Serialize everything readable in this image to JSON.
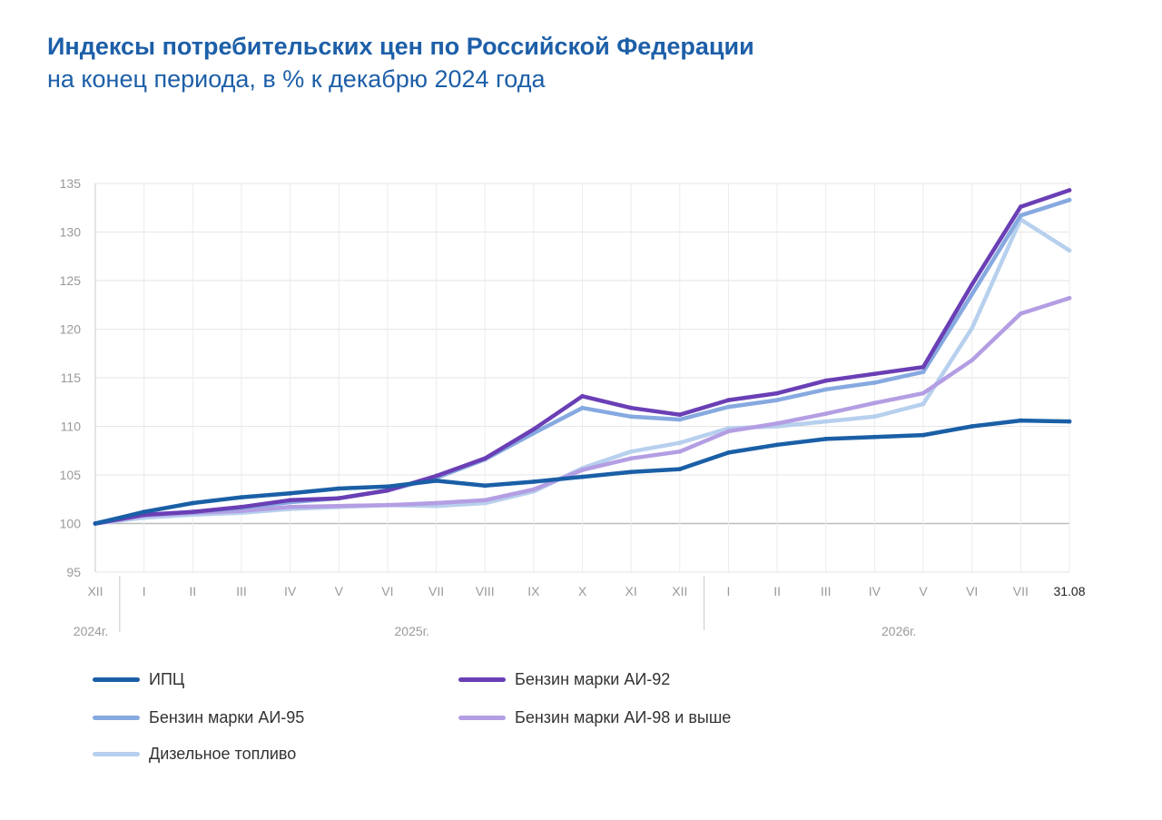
{
  "title": "Индексы потребительских цен по Российской Федерации",
  "subtitle": "на конец периода, в % к декабрю 2024 года",
  "chart_data": {
    "type": "line",
    "x": [
      "XII",
      "I",
      "II",
      "III",
      "IV",
      "V",
      "VI",
      "VII",
      "VIII",
      "IX",
      "X",
      "XI",
      "XII",
      "I",
      "II",
      "III",
      "IV",
      "V",
      "VI",
      "VII",
      "31.08"
    ],
    "year_labels": [
      "2024г.",
      "2025г.",
      "2026г."
    ],
    "ylim": [
      95,
      135
    ],
    "yticks": [
      95,
      100,
      105,
      110,
      115,
      120,
      125,
      130,
      135
    ],
    "grid": true,
    "legend_position": "bottom",
    "series": [
      {
        "name": "ИПЦ",
        "color": "#1a5fa6",
        "values": [
          100,
          101.2,
          102.1,
          102.7,
          103.1,
          103.6,
          103.8,
          104.4,
          103.9,
          104.3,
          104.8,
          105.3,
          105.6,
          107.3,
          108.1,
          108.7,
          108.9,
          109.1,
          110.0,
          110.6,
          110.5
        ]
      },
      {
        "name": "Бензин марки АИ-92",
        "color": "#6a3fb5",
        "values": [
          100,
          100.9,
          101.2,
          101.7,
          102.4,
          102.6,
          103.4,
          104.9,
          106.7,
          109.7,
          113.1,
          111.9,
          111.2,
          112.7,
          113.4,
          114.7,
          115.4,
          116.1,
          124.6,
          132.6,
          134.3
        ]
      },
      {
        "name": "Бензин марки АИ-95",
        "color": "#86a9e0",
        "values": [
          100,
          100.9,
          101.2,
          101.6,
          102.2,
          102.6,
          103.4,
          104.7,
          106.6,
          109.3,
          111.9,
          111.0,
          110.7,
          112.0,
          112.7,
          113.8,
          114.5,
          115.6,
          123.6,
          131.7,
          133.3
        ]
      },
      {
        "name": "Бензин марки АИ-98 и выше",
        "color": "#b49ee3",
        "values": [
          100,
          100.8,
          101.1,
          101.3,
          101.7,
          101.8,
          101.9,
          102.1,
          102.4,
          103.5,
          105.5,
          106.7,
          107.4,
          109.5,
          110.3,
          111.3,
          112.4,
          113.4,
          116.8,
          121.6,
          123.2
        ]
      },
      {
        "name": "Дизельное топливо",
        "color": "#b7d0ee",
        "values": [
          100,
          100.6,
          100.9,
          101.1,
          101.5,
          101.7,
          101.9,
          101.8,
          102.1,
          103.3,
          105.7,
          107.4,
          108.3,
          109.8,
          110.0,
          110.5,
          111.0,
          112.3,
          120.1,
          131.3,
          128.1
        ]
      }
    ]
  },
  "legend": {
    "cpi": "ИПЦ",
    "ai92": "Бензин марки АИ-92",
    "ai95": "Бензин марки АИ-95",
    "ai98": "Бензин марки АИ-98 и выше",
    "diesel": "Дизельное топливо"
  }
}
